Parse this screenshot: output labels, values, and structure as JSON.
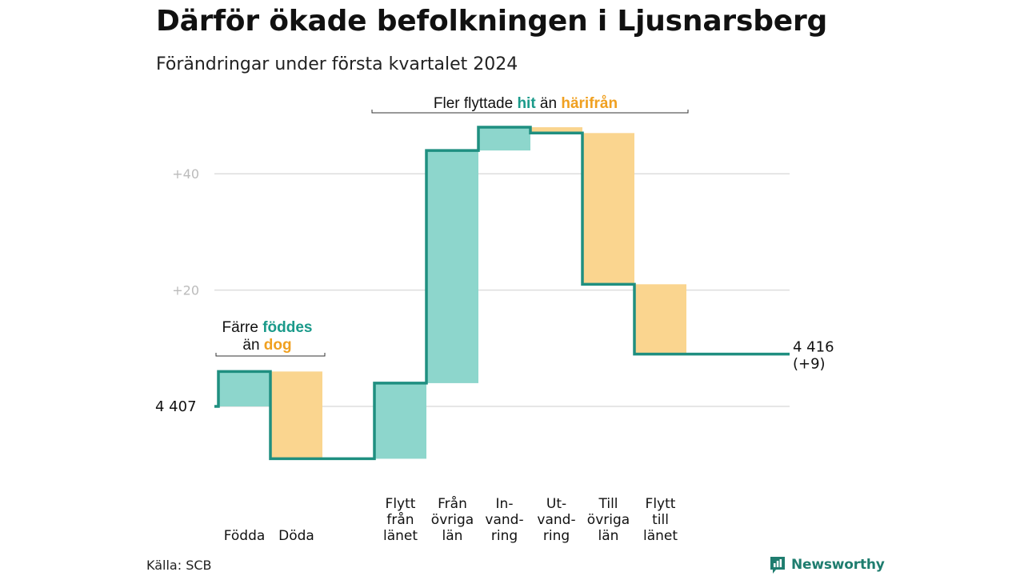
{
  "title": "Därför ökade befolkningen i Ljusnarsberg",
  "subtitle": "Förändringar under första kvartalet 2024",
  "source": "Källa: SCB",
  "brand": "Newsworthy",
  "colors": {
    "in": "#8dd6cc",
    "out": "#fad58f",
    "line": "#1f8f80",
    "hit": "#1a9a8a",
    "harifran": "#f0a020",
    "grid": "#dddddd",
    "tick": "#bbbbbb"
  },
  "chart_data": {
    "type": "waterfall",
    "start_label": "4  407",
    "end_label": [
      "4 416",
      "(+9)"
    ],
    "start": 0,
    "end": 9,
    "yticks": [
      {
        "value": 40,
        "label": "+40"
      },
      {
        "value": 20,
        "label": "+20"
      }
    ],
    "steps": [
      {
        "label": [
          "Födda"
        ],
        "change": 6,
        "kind": "in"
      },
      {
        "label": [
          "Döda"
        ],
        "change": -15,
        "kind": "out"
      },
      {
        "label": [],
        "change": 0,
        "kind": "none"
      },
      {
        "label": [
          "Flytt",
          "från",
          "länet"
        ],
        "change": 13,
        "kind": "in"
      },
      {
        "label": [
          "Från",
          "övriga",
          "län"
        ],
        "change": 40,
        "kind": "in"
      },
      {
        "label": [
          "In-",
          "vand-",
          "ring"
        ],
        "change": 4,
        "kind": "in"
      },
      {
        "label": [
          "Ut-",
          "vand-",
          "ring"
        ],
        "change": -1,
        "kind": "out"
      },
      {
        "label": [
          "Till",
          "övriga",
          "län"
        ],
        "change": -26,
        "kind": "out"
      },
      {
        "label": [
          "Flytt",
          "till",
          "länet"
        ],
        "change": -12,
        "kind": "out"
      }
    ],
    "annotations": [
      {
        "id": "births",
        "parts": [
          {
            "line": 1,
            "text": "Färre ",
            "color": "text"
          },
          {
            "line": 1,
            "text": "föddes",
            "color": "hit"
          },
          {
            "line": 2,
            "text": "än ",
            "color": "text"
          },
          {
            "line": 2,
            "text": "dog",
            "color": "harifran"
          }
        ]
      },
      {
        "id": "moves",
        "parts": [
          {
            "line": 1,
            "text": "Fler flyttade ",
            "color": "text"
          },
          {
            "line": 1,
            "text": "hit",
            "color": "hit"
          },
          {
            "line": 1,
            "text": " än ",
            "color": "text"
          },
          {
            "line": 1,
            "text": "härifrån",
            "color": "harifran"
          }
        ]
      }
    ]
  }
}
